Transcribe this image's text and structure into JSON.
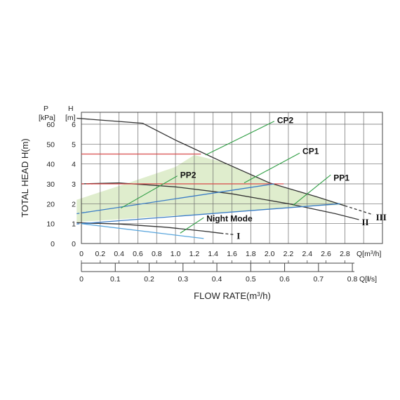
{
  "chart_data": {
    "type": "line",
    "axes": {
      "p_symbol": "P",
      "p_unit": "[kPa]",
      "h_symbol": "H",
      "h_unit": "[m]",
      "y_title": "TOTAL HEAD H(m)",
      "x_title_before": "FLOW RATE(m",
      "x_title_sup": "3",
      "x_title_after": "/h)",
      "x_unit_m3h_prefix": "Q[m",
      "x_unit_m3h_sup": "3",
      "x_unit_m3h_suffix": "/h]",
      "x_unit_ls_prefix": "Q[",
      "x_unit_ls_bold": "l",
      "x_unit_ls_suffix": "/s]",
      "h_ticks": [
        "0",
        "1",
        "2",
        "3",
        "4",
        "5",
        "6"
      ],
      "p_ticks": [
        "0",
        "10",
        "20",
        "30",
        "40",
        "50",
        "60"
      ],
      "q_m3h_ticks": [
        "0",
        "0.2",
        "0.4",
        "0.6",
        "0.8",
        "1.0",
        "1.2",
        "1.4",
        "1.6",
        "1.8",
        "2.0",
        "2.2",
        "2.4",
        "2.6",
        "2.8"
      ],
      "q_ls_ticks": [
        "0",
        "0.1",
        "0.2",
        "0.3",
        "0.4",
        "0.5",
        "0.6",
        "0.7",
        "0.8"
      ],
      "q_ls_values": [
        0,
        0.1,
        0.2,
        0.3,
        0.4,
        0.5,
        0.6,
        0.7,
        0.8
      ],
      "xlim_m3h": [
        0,
        3.2
      ],
      "ylim_h": [
        0,
        6.6
      ],
      "grid": true
    },
    "series": [
      {
        "name": "III",
        "color": "#333333",
        "solid": [
          [
            -0.05,
            6.3
          ],
          [
            0.65,
            6.05
          ],
          [
            1.0,
            5.2
          ],
          [
            1.5,
            4.1
          ],
          [
            2.0,
            3.05
          ],
          [
            2.5,
            2.35
          ],
          [
            2.8,
            1.9
          ]
        ],
        "dashed": [
          [
            2.8,
            1.9
          ],
          [
            3.1,
            1.45
          ]
        ]
      },
      {
        "name": "II",
        "color": "#333333",
        "solid": [
          [
            0.0,
            3.0
          ],
          [
            0.4,
            3.05
          ],
          [
            1.0,
            2.85
          ],
          [
            1.6,
            2.5
          ],
          [
            2.2,
            2.0
          ],
          [
            2.7,
            1.5
          ],
          [
            2.95,
            1.2
          ]
        ],
        "dashed": []
      },
      {
        "name": "I",
        "color": "#333333",
        "solid": [
          [
            -0.05,
            1.05
          ],
          [
            0.4,
            0.98
          ],
          [
            0.9,
            0.82
          ],
          [
            1.3,
            0.62
          ],
          [
            1.48,
            0.52
          ]
        ],
        "dashed": [
          [
            1.48,
            0.52
          ],
          [
            1.62,
            0.45
          ]
        ]
      },
      {
        "name": "CP2",
        "color": "#d84a4a",
        "solid": [
          [
            0.0,
            4.5
          ],
          [
            1.27,
            4.5
          ]
        ],
        "dashed": []
      },
      {
        "name": "CP1",
        "color": "#d84a4a",
        "solid": [
          [
            0.05,
            3.0
          ],
          [
            2.15,
            3.0
          ]
        ],
        "dashed": [
          [
            0.0,
            3.0
          ],
          [
            0.12,
            3.0
          ]
        ]
      },
      {
        "name": "PP2",
        "color": "#3a7cc6",
        "solid": [
          [
            0.02,
            1.55
          ],
          [
            2.05,
            3.0
          ]
        ],
        "dashed": [
          [
            -0.05,
            1.5
          ],
          [
            0.06,
            1.58
          ]
        ]
      },
      {
        "name": "PP1",
        "color": "#3a7cc6",
        "solid": [
          [
            0.0,
            1.0
          ],
          [
            2.75,
            2.0
          ]
        ],
        "dashed": [
          [
            -0.05,
            0.98
          ],
          [
            0.08,
            1.03
          ]
        ]
      },
      {
        "name": "Night Mode",
        "color": "#5aa6dd",
        "solid": [
          [
            0.0,
            1.0
          ],
          [
            1.3,
            0.25
          ]
        ],
        "dashed": []
      }
    ],
    "shaded_region": [
      [
        -0.05,
        2.2
      ],
      [
        0.5,
        3.05
      ],
      [
        1.0,
        3.85
      ],
      [
        1.2,
        4.45
      ],
      [
        1.5,
        4.1
      ],
      [
        2.0,
        3.05
      ],
      [
        2.5,
        2.35
      ],
      [
        2.8,
        1.95
      ],
      [
        2.5,
        1.88
      ],
      [
        2.0,
        1.72
      ],
      [
        1.5,
        1.55
      ],
      [
        0.5,
        1.25
      ],
      [
        -0.05,
        1.08
      ]
    ],
    "shaded_color": "#dcebc8",
    "annotations": [
      {
        "text": "CP2",
        "leader_from": [
          1.32,
          4.45
        ],
        "leader_to": [
          2.05,
          6.15
        ],
        "label_at": [
          2.08,
          6.2
        ],
        "leader_color": "#2f9e44"
      },
      {
        "text": "CP1",
        "leader_from": [
          1.73,
          3.05
        ],
        "leader_to": [
          2.32,
          4.55
        ],
        "label_at": [
          2.35,
          4.65
        ],
        "leader_color": "#2f9e44"
      },
      {
        "text": "PP2",
        "leader_from": [
          0.42,
          1.78
        ],
        "leader_to": [
          1.02,
          3.4
        ],
        "label_at": [
          1.05,
          3.45
        ],
        "leader_color": "#2f9e44"
      },
      {
        "text": "PP1",
        "leader_from": [
          2.25,
          1.92
        ],
        "leader_to": [
          2.65,
          3.45
        ],
        "label_at": [
          2.68,
          3.3
        ],
        "leader_color": "#2f9e44"
      },
      {
        "text": "Night Mode",
        "leader_from": [
          1.05,
          0.52
        ],
        "leader_to": [
          1.3,
          1.3
        ],
        "label_at": [
          1.33,
          1.25
        ],
        "leader_color": "#2f9e44"
      }
    ],
    "curve_labels": [
      {
        "text": "III",
        "at": [
          3.13,
          1.35
        ]
      },
      {
        "text": "II",
        "at": [
          2.98,
          1.1
        ]
      },
      {
        "text": "I",
        "at": [
          1.65,
          0.4
        ]
      }
    ]
  }
}
